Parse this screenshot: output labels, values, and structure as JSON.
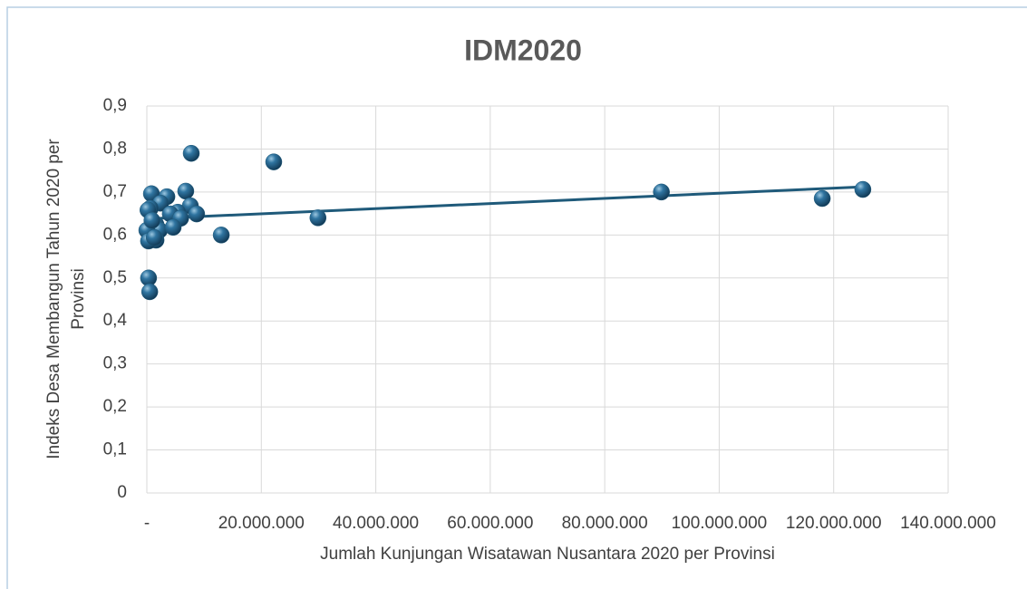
{
  "chart_data": {
    "type": "scatter",
    "title": "IDM2020",
    "x_label": "Jumlah Kunjungan Wisatawan Nusantara 2020 per Provinsi",
    "y_label": [
      "Indeks Desa Membangun Tahun 2020 per",
      "Provinsi"
    ],
    "series": [
      {
        "color": "#1f5a7a",
        "x": [
          7760000,
          22170000,
          29900000,
          13000000,
          89900000,
          118000000,
          125100000,
          800000,
          3500000,
          6800000,
          2400000,
          7600000,
          5400000,
          4100000,
          8700000,
          5900000,
          600000,
          200000,
          1600000,
          2200000,
          4600000,
          0,
          1600000,
          300000,
          1300000,
          300000,
          500000,
          900000
        ],
        "values": [
          0.79,
          0.77,
          0.64,
          0.6,
          0.7,
          0.685,
          0.706,
          0.696,
          0.689,
          0.702,
          0.674,
          0.668,
          0.653,
          0.649,
          0.649,
          0.639,
          0.662,
          0.658,
          0.624,
          0.611,
          0.618,
          0.611,
          0.588,
          0.586,
          0.594,
          0.5,
          0.468,
          0.634
        ]
      }
    ],
    "trendline": {
      "color": "#1f5a7a",
      "x": [
        1000000,
        125000000
      ],
      "values": [
        0.638,
        0.712
      ]
    },
    "xlim": [
      0,
      140000000
    ],
    "xticks": [
      {
        "value": 0,
        "label": "-"
      },
      {
        "value": 20000000,
        "label": "20.000.000"
      },
      {
        "value": 40000000,
        "label": "40.000.000"
      },
      {
        "value": 60000000,
        "label": "60.000.000"
      },
      {
        "value": 80000000,
        "label": "80.000.000"
      },
      {
        "value": 100000000,
        "label": "100.000.000"
      },
      {
        "value": 120000000,
        "label": "120.000.000"
      },
      {
        "value": 140000000,
        "label": "140.000.000"
      }
    ],
    "ylim": [
      0,
      0.9
    ],
    "yticks": [
      0,
      {
        "value": 0.1,
        "label": "0,1"
      },
      {
        "value": 0.2,
        "label": "0,2"
      },
      {
        "value": 0.3,
        "label": "0,3"
      },
      {
        "value": 0.4,
        "label": "0,4"
      },
      {
        "value": 0.5,
        "label": "0,5"
      },
      {
        "value": 0.6,
        "label": "0,6"
      },
      {
        "value": 0.7,
        "label": "0,7"
      },
      {
        "value": 0.8,
        "label": "0,8"
      },
      {
        "value": 0.9,
        "label": "0,9"
      }
    ],
    "grid": true
  }
}
